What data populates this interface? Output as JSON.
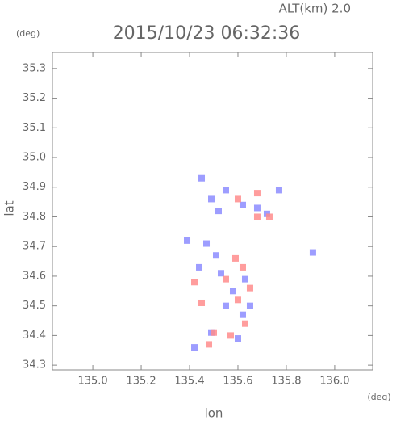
{
  "chart_data": {
    "type": "scatter",
    "title": "2015/10/23 06:32:36",
    "altitude_label": "ALT(km) 2.0",
    "y_unit": "(deg)",
    "x_unit": "(deg)",
    "xlabel": "lon",
    "ylabel": "lat",
    "xlim": [
      134.833,
      136.157
    ],
    "ylim": [
      34.284,
      35.354
    ],
    "xticks": [
      {
        "value": 135,
        "label": "135.0"
      },
      135.2,
      135.4,
      135.6,
      135.8,
      {
        "value": 136,
        "label": "136.0"
      }
    ],
    "yticks": [
      34.3,
      34.4,
      34.5,
      34.6,
      34.7,
      34.8,
      34.9,
      {
        "value": 35,
        "label": "35.0"
      },
      35.1,
      35.2,
      35.3
    ],
    "series": [
      {
        "color": "#8c8cff",
        "x": [
          135.45,
          135.49,
          135.52,
          135.62,
          135.68,
          135.77,
          135.47,
          135.51,
          135.44,
          135.53,
          135.58,
          135.63,
          135.55,
          135.62,
          135.49,
          135.42,
          135.6,
          135.65,
          135.91,
          135.39,
          135.55,
          135.72
        ],
        "values": [
          34.93,
          34.86,
          34.82,
          34.84,
          34.83,
          34.89,
          34.71,
          34.67,
          34.63,
          34.61,
          34.55,
          34.59,
          34.5,
          34.47,
          34.41,
          34.36,
          34.39,
          34.5,
          34.68,
          34.72,
          34.89,
          34.81
        ]
      },
      {
        "color": "#ff8c8c",
        "x": [
          135.6,
          135.68,
          135.73,
          135.59,
          135.62,
          135.55,
          135.42,
          135.6,
          135.63,
          135.5,
          135.57,
          135.48,
          135.65,
          135.68,
          135.45
        ],
        "values": [
          34.86,
          34.8,
          34.8,
          34.66,
          34.63,
          34.59,
          34.58,
          34.52,
          34.44,
          34.41,
          34.4,
          34.37,
          34.56,
          34.88,
          34.51
        ]
      }
    ]
  }
}
